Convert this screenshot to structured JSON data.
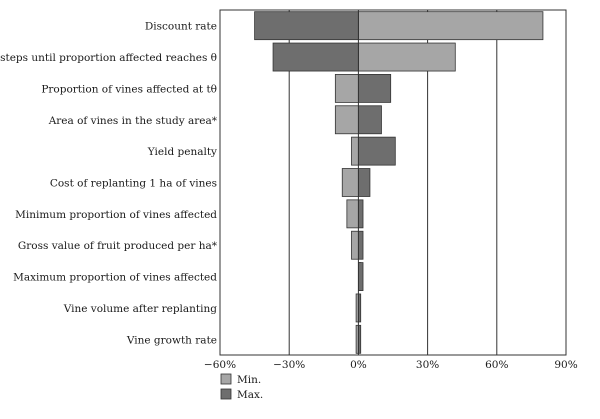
{
  "chart_data": {
    "type": "bar",
    "orientation": "horizontal",
    "subtype": "tornado",
    "title": "",
    "xlabel": "",
    "ylabel": "",
    "xlim": [
      -60,
      90
    ],
    "x_unit": "%",
    "x_ticks": [
      "−60%",
      "−30%",
      "0%",
      "30%",
      "60%",
      "90%"
    ],
    "x_tick_values": [
      -60,
      -30,
      0,
      30,
      60,
      90
    ],
    "grid": "vertical gridlines at ticks",
    "legend_position": "bottom-left",
    "colors": {
      "min": "#a6a6a6",
      "max": "#6e6e6e",
      "grid": "#333333"
    },
    "categories": [
      "Discount rate",
      "Time steps until proportion affected reaches θ",
      "Proportion of vines affected at tθ",
      "Area of vines in the study area*",
      "Yield penalty",
      "Cost of replanting 1 ha of vines",
      "Minimum proportion of vines affected",
      "Gross value of fruit produced per ha*",
      "Maximum proportion of vines affected",
      "Vine volume after replanting",
      "Vine growth rate"
    ],
    "series": [
      {
        "name": "Min.",
        "values": [
          80,
          42,
          -10,
          -10,
          -3,
          -7,
          -5,
          -3,
          1,
          -1,
          -1
        ]
      },
      {
        "name": "Max.",
        "values": [
          -45,
          -37,
          14,
          10,
          16,
          5,
          2,
          2,
          2,
          1,
          1
        ]
      }
    ]
  }
}
